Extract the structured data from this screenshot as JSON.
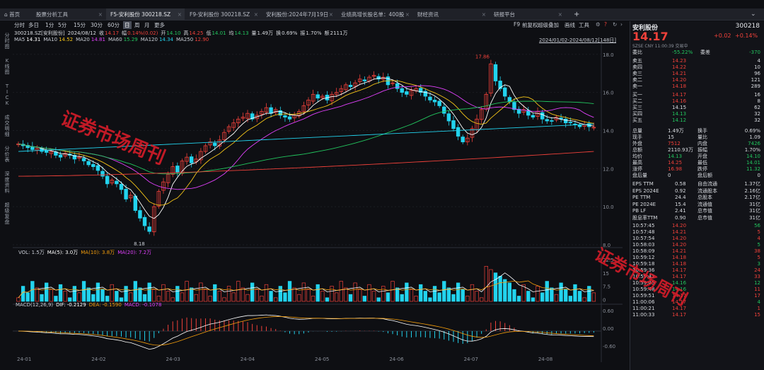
{
  "tabs": [
    {
      "label": "首页",
      "active": false
    },
    {
      "label": "股票分析工具",
      "active": false
    },
    {
      "label": "F5-安利股份 300218.SZ",
      "active": true
    },
    {
      "label": "F9-安利股份 300218.SZ",
      "active": false
    },
    {
      "label": "安利股份:2024年7月19日",
      "active": false
    },
    {
      "label": "业绩高增长股名单：400股",
      "active": false
    },
    {
      "label": "财经资讯",
      "active": false
    },
    {
      "label": "研报平台",
      "active": false
    }
  ],
  "toolbar": {
    "periods": [
      "分时",
      "多日",
      "1分",
      "5分",
      "15分",
      "30分",
      "60分",
      "日",
      "周",
      "月",
      "更多"
    ],
    "selected": "日",
    "right": [
      "F9",
      "前复权",
      "超级叠加",
      "画线",
      "工具"
    ]
  },
  "info": {
    "stock": "300218.SZ[安利股份]",
    "date": "2024/08/12",
    "close_label": "收",
    "close": "14.17",
    "change_label": "幅",
    "change": "0.14%(0.02)",
    "open_label": "开",
    "open": "14.10",
    "high_label": "高",
    "high": "14.25",
    "low_label": "低",
    "low": "14.01",
    "avg_label": "均",
    "avg": "14.13",
    "vol_label": "量",
    "vol": "1.49万",
    "turn_label": "换",
    "turn": "0.69%",
    "amp_label": "振",
    "amp": "1.70%",
    "amt_label": "额",
    "amt": "2111万"
  },
  "ma": [
    {
      "label": "MA5",
      "value": "14.31",
      "color": "#ffffff"
    },
    {
      "label": "MA10",
      "value": "14.52",
      "color": "#f5c518"
    },
    {
      "label": "MA20",
      "value": "14.81",
      "color": "#e040fb"
    },
    {
      "label": "MA60",
      "value": "15.29",
      "color": "#22c55e"
    },
    {
      "label": "MA120",
      "value": "14.34",
      "color": "#22d3ee"
    },
    {
      "label": "MA250",
      "value": "12.90",
      "color": "#f0413a"
    }
  ],
  "range_text": "2024/01/02-2024/08/12[148日]",
  "left_nav": [
    "分时图",
    "K线图",
    "TICK",
    "成交明细",
    "分价表",
    "深度资料",
    "超级复盘"
  ],
  "chart_data": {
    "type": "candlestick",
    "ylim": [
      8.0,
      18.4
    ],
    "yticks": [
      "18.0",
      "16.0",
      "14.0",
      "12.0",
      "10.0",
      "8.0"
    ],
    "xlabels": [
      "24-01",
      "24-02",
      "24-03",
      "24-04",
      "24-05",
      "24-06",
      "24-07",
      "24-08"
    ],
    "annotations": [
      {
        "text": "17.86",
        "value": 17.86
      },
      {
        "text": "8.18",
        "value": 8.18
      }
    ],
    "closes": [
      13.3,
      13.2,
      13.1,
      13.0,
      13.05,
      12.9,
      12.85,
      12.9,
      12.7,
      12.6,
      12.8,
      12.7,
      12.5,
      12.6,
      12.4,
      12.2,
      12.1,
      11.9,
      11.6,
      11.2,
      11.4,
      11.2,
      10.9,
      10.4,
      10.6,
      9.8,
      9.4,
      9.0,
      8.7,
      10.0,
      10.8,
      11.3,
      11.7,
      12.1,
      11.8,
      12.4,
      12.6,
      12.3,
      12.5,
      12.9,
      13.2,
      13.4,
      13.2,
      13.5,
      13.9,
      14.2,
      14.4,
      14.6,
      14.7,
      14.9,
      14.6,
      14.8,
      15.0,
      15.2,
      14.9,
      15.1,
      14.8,
      14.7,
      14.6,
      14.8,
      15.0,
      15.3,
      15.6,
      15.9,
      15.7,
      15.8,
      15.6,
      15.9,
      16.0,
      16.2,
      16.4,
      16.3,
      16.5,
      16.7,
      16.6,
      16.8,
      16.9,
      16.7,
      16.8,
      16.4,
      16.5,
      16.2,
      16.0,
      15.9,
      16.1,
      16.2,
      16.0,
      15.8,
      15.6,
      15.5,
      15.3,
      14.9,
      14.5,
      14.1,
      13.7,
      13.4,
      13.6,
      14.1,
      14.6,
      15.1,
      15.9,
      17.5,
      16.6,
      16.2,
      15.8,
      15.5,
      15.1,
      14.9,
      15.1,
      14.8,
      14.7,
      15.0,
      14.6,
      14.5,
      14.5,
      14.7,
      14.6,
      14.4,
      14.4,
      14.3,
      14.2,
      14.3,
      14.2,
      14.17
    ],
    "volume": {
      "label": "VOL: 1.5万",
      "ma5": "MA(5): 3.0万",
      "ma10": "MA(10): 3.8万",
      "ma20": "MA(20): 7.2万",
      "yticks": [
        "22.5",
        "15",
        "7.5",
        "0"
      ]
    },
    "macd": {
      "label": "MACD(12,26,9)",
      "dif": "DIF: -0.2129",
      "dea": "DEA: -0.1590",
      "macd": "MACD: -0.1078",
      "yticks": [
        "0.60",
        "0.00",
        "-0.60"
      ]
    }
  },
  "panel": {
    "name": "安利股份",
    "code": "300218",
    "price": "14.17",
    "change": "+0.02",
    "pct": "+0.14%",
    "meta": "SZSE CNY 11:00:39 交易中",
    "weibi": {
      "label": "委比",
      "value": "-55.22%",
      "diff_label": "委差",
      "diff": "-370"
    },
    "asks": [
      {
        "label": "卖五",
        "price": "14.23",
        "vol": "4"
      },
      {
        "label": "卖四",
        "price": "14.22",
        "vol": "10"
      },
      {
        "label": "卖三",
        "price": "14.21",
        "vol": "96"
      },
      {
        "label": "卖二",
        "price": "14.20",
        "vol": "121"
      },
      {
        "label": "卖一",
        "price": "14.18",
        "vol": "289"
      }
    ],
    "bids": [
      {
        "label": "买一",
        "price": "14.17",
        "vol": "16"
      },
      {
        "label": "买二",
        "price": "14.16",
        "vol": "8"
      },
      {
        "label": "买三",
        "price": "14.15",
        "vol": "62"
      },
      {
        "label": "买四",
        "price": "14.13",
        "vol": "32"
      },
      {
        "label": "买五",
        "price": "14.12",
        "vol": "32"
      }
    ],
    "stats": [
      [
        "总量",
        "1.49万",
        "换手",
        "0.69%"
      ],
      [
        "现手",
        "15",
        "量比",
        "1.09"
      ],
      [
        "外盘",
        "7512",
        "内盘",
        "7426"
      ],
      [
        "总额",
        "2110.93万",
        "振幅",
        "1.70%"
      ],
      [
        "均价",
        "14.13",
        "开盘",
        "14.10"
      ],
      [
        "最高",
        "14.25",
        "最低",
        "14.01"
      ],
      [
        "涨停",
        "16.98",
        "跌停",
        "11.32"
      ],
      [
        "盘后量",
        "0",
        "盘后额",
        "0"
      ]
    ],
    "fin": [
      [
        "EPS TTM",
        "0.58",
        "自由流通",
        "1.37亿"
      ],
      [
        "EPS 2024E",
        "0.92",
        "流通股本",
        "2.16亿"
      ],
      [
        "PE TTM",
        "24.4",
        "总股本",
        "2.17亿"
      ],
      [
        "PE 2024E",
        "15.4",
        "流通值",
        "31亿"
      ],
      [
        "PB LF",
        "2.41",
        "总市值",
        "31亿"
      ],
      [
        "股息率TTM",
        "0.90",
        "总市值",
        "31亿"
      ]
    ],
    "ticks": [
      [
        "10:57:45",
        "14.20",
        "56"
      ],
      [
        "10:57:48",
        "14.21",
        "5"
      ],
      [
        "10:57:54",
        "14.20",
        "4"
      ],
      [
        "10:58:03",
        "14.20",
        "5"
      ],
      [
        "10:58:09",
        "14.21",
        "38"
      ],
      [
        "10:59:12",
        "14.18",
        "5"
      ],
      [
        "10:59:18",
        "14.18",
        "3"
      ],
      [
        "10:59:36",
        "14.17",
        "24"
      ],
      [
        "10:59:42",
        "14.17",
        "33"
      ],
      [
        "10:59:45",
        "14.16",
        "12"
      ],
      [
        "10:59:48",
        "14.16",
        "11"
      ],
      [
        "10:59:51",
        "14.17",
        "17"
      ],
      [
        "11:00:06",
        "14.17",
        "4"
      ],
      [
        "11:00:21",
        "14.17",
        "1"
      ],
      [
        "11:00:33",
        "14.17",
        "15"
      ]
    ]
  },
  "watermark": "证券市场周刊"
}
